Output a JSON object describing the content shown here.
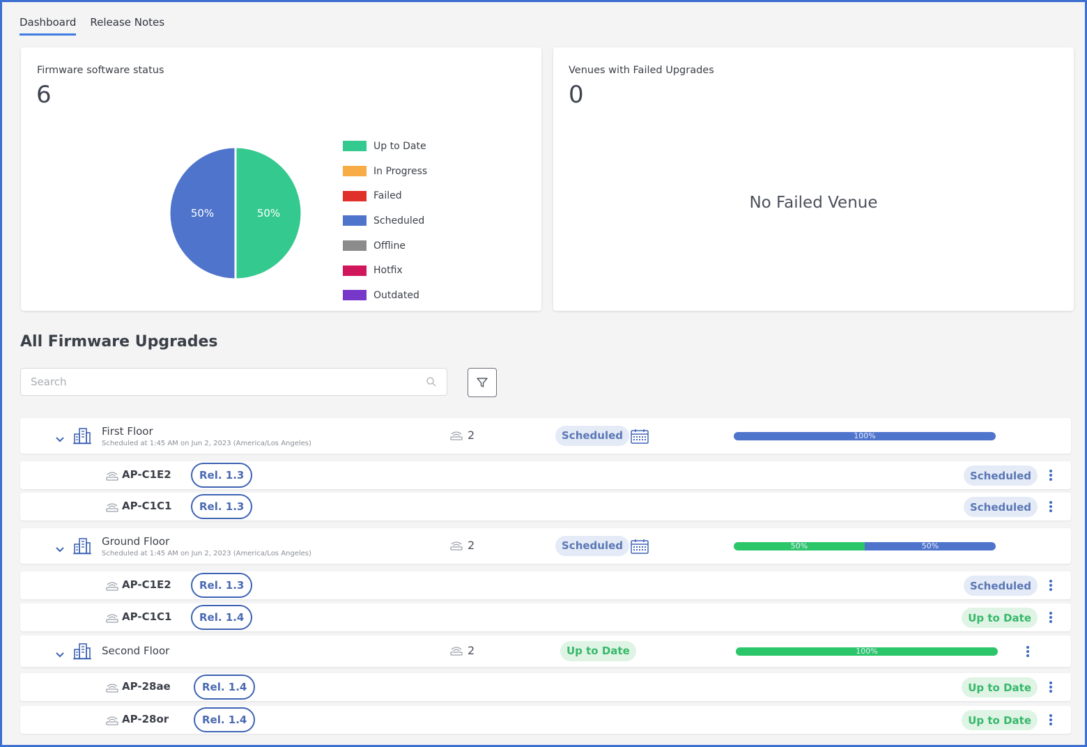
{
  "tabs": [
    {
      "label": "Dashboard",
      "active": true
    },
    {
      "label": "Release Notes",
      "active": false
    }
  ],
  "firmware_status": {
    "title": "Firmware software status",
    "count": "6",
    "chart_data": {
      "type": "pie",
      "slices": [
        {
          "label": "Scheduled",
          "value": 50,
          "display": "50%",
          "color": "#4f74cc"
        },
        {
          "label": "Up to Date",
          "value": 50,
          "display": "50%",
          "color": "#34c98e"
        }
      ],
      "legend_placement": "right",
      "legend": [
        {
          "label": "Up to Date",
          "color": "#34c98e"
        },
        {
          "label": "In Progress",
          "color": "#f8ac45"
        },
        {
          "label": "Failed",
          "color": "#e0302a"
        },
        {
          "label": "Scheduled",
          "color": "#4f74cc"
        },
        {
          "label": "Offline",
          "color": "#8b8b8b"
        },
        {
          "label": "Hotfix",
          "color": "#d0175c"
        },
        {
          "label": "Outdated",
          "color": "#7737c9"
        }
      ]
    }
  },
  "failed_venues": {
    "title": "Venues with Failed Upgrades",
    "count": "0",
    "empty_text": "No Failed Venue"
  },
  "upgrades": {
    "title": "All Firmware Upgrades",
    "search_placeholder": "Search",
    "venues": [
      {
        "name": "First Floor",
        "subtitle": "Scheduled at 1:45 AM on Jun 2, 2023 (America/Los Angeles)",
        "ap_count": "2",
        "status": "Scheduled",
        "progress": [
          {
            "label": "100%",
            "value": 100,
            "color": "#4f74cc"
          }
        ],
        "aps": [
          {
            "name": "AP-C1E2",
            "release": "Rel. 1.3",
            "status": "Scheduled"
          },
          {
            "name": "AP-C1C1",
            "release": "Rel. 1.3",
            "status": "Scheduled"
          }
        ]
      },
      {
        "name": "Ground Floor",
        "subtitle": "Scheduled at 1:45 AM on Jun 2, 2023 (America/Los Angeles)",
        "ap_count": "2",
        "status": "Scheduled",
        "progress": [
          {
            "label": "50%",
            "value": 50,
            "color": "#2cc66a"
          },
          {
            "label": "50%",
            "value": 50,
            "color": "#4f74cc"
          }
        ],
        "aps": [
          {
            "name": "AP-C1E2",
            "release": "Rel. 1.3",
            "status": "Scheduled"
          },
          {
            "name": "AP-C1C1",
            "release": "Rel. 1.4",
            "status": "Up to Date"
          }
        ]
      },
      {
        "name": "Second Floor",
        "subtitle": "",
        "ap_count": "2",
        "status": "Up to Date",
        "progress": [
          {
            "label": "100%",
            "value": 100,
            "color": "#2cc66a"
          }
        ],
        "aps": [
          {
            "name": "AP-28ae",
            "release": "Rel. 1.4",
            "status": "Up to Date"
          },
          {
            "name": "AP-28or",
            "release": "Rel. 1.4",
            "status": "Up to Date"
          }
        ]
      }
    ]
  }
}
